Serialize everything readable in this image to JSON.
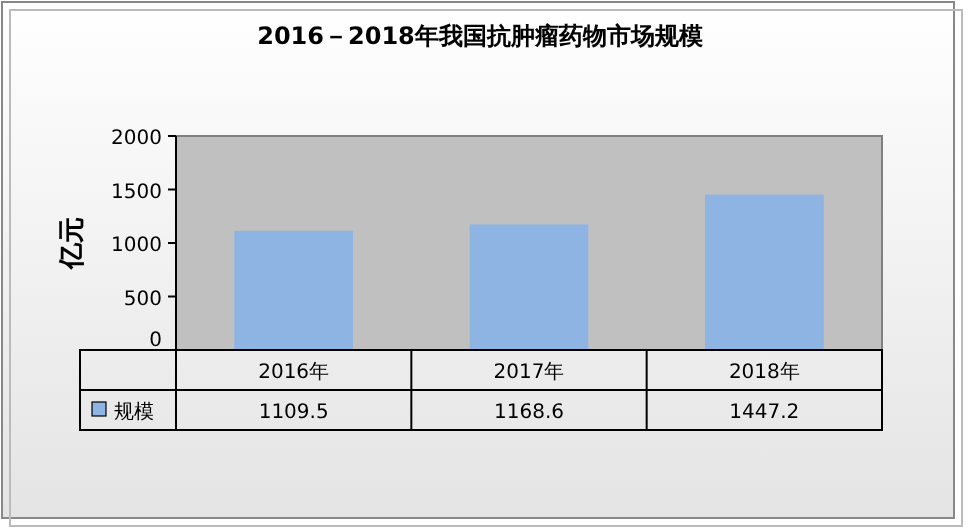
{
  "chart_data": {
    "type": "bar",
    "title": "2016－2018年我国抗肿瘤药物市场规模",
    "ylabel": "亿元",
    "categories": [
      "2016年",
      "2017年",
      "2018年"
    ],
    "series": [
      {
        "name": "规模",
        "color": "#8db4e2",
        "values": [
          1109.5,
          1168.6,
          1447.2
        ]
      }
    ],
    "ylim": [
      0,
      2000
    ],
    "yticks": [
      0,
      500,
      1000,
      1500,
      2000
    ],
    "grid": false,
    "legend": "bottom",
    "data_labels": true
  }
}
